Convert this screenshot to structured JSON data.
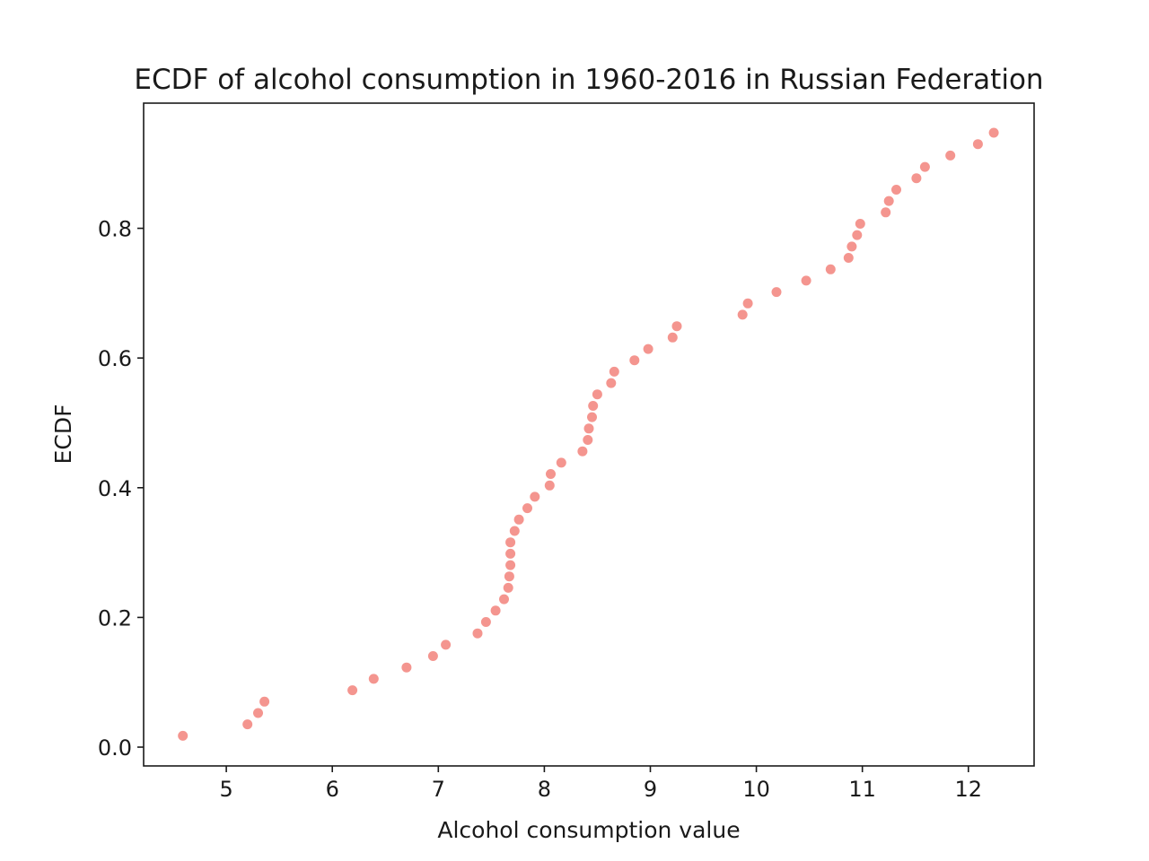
{
  "chart_data": {
    "type": "scatter",
    "title": "ECDF of alcohol consumption in 1960-2016 in Russian Federation",
    "xlabel": "Alcohol consumption value",
    "ylabel": "ECDF",
    "xlim": [
      4.22,
      12.62
    ],
    "ylim": [
      -0.029,
      0.993
    ],
    "xticks": [
      5,
      6,
      7,
      8,
      9,
      10,
      11,
      12
    ],
    "xtick_labels": [
      "5",
      "6",
      "7",
      "8",
      "9",
      "10",
      "11",
      "12"
    ],
    "yticks": [
      0.0,
      0.2,
      0.4,
      0.6,
      0.8
    ],
    "ytick_labels": [
      "0.0",
      "0.2",
      "0.4",
      "0.6",
      "0.8"
    ],
    "grid": false,
    "marker_color": "#f4958f",
    "x": [
      4.59,
      5.2,
      5.3,
      5.36,
      6.19,
      6.39,
      6.7,
      6.95,
      7.07,
      7.37,
      7.45,
      7.54,
      7.62,
      7.66,
      7.67,
      7.68,
      7.68,
      7.68,
      7.72,
      7.76,
      7.84,
      7.91,
      8.05,
      8.06,
      8.16,
      8.36,
      8.41,
      8.42,
      8.45,
      8.46,
      8.5,
      8.63,
      8.66,
      8.85,
      8.98,
      9.21,
      9.25,
      9.87,
      9.92,
      10.19,
      10.47,
      10.7,
      10.87,
      10.9,
      10.95,
      10.98,
      11.22,
      11.25,
      11.32,
      11.51,
      11.59,
      11.83,
      12.09,
      12.24
    ],
    "y": [
      0.0175,
      0.0351,
      0.0526,
      0.0702,
      0.0877,
      0.1053,
      0.1228,
      0.1404,
      0.1579,
      0.1754,
      0.193,
      0.2105,
      0.2281,
      0.2456,
      0.2632,
      0.2807,
      0.2982,
      0.3158,
      0.3333,
      0.3509,
      0.3684,
      0.386,
      0.4035,
      0.4211,
      0.4386,
      0.4561,
      0.4737,
      0.4912,
      0.5088,
      0.5263,
      0.5439,
      0.5614,
      0.5789,
      0.5965,
      0.614,
      0.6316,
      0.6491,
      0.6667,
      0.6842,
      0.7018,
      0.7193,
      0.7368,
      0.7544,
      0.7719,
      0.7895,
      0.807,
      0.8246,
      0.8421,
      0.8596,
      0.8772,
      0.8947,
      0.9123,
      0.9298,
      0.9474
    ]
  }
}
